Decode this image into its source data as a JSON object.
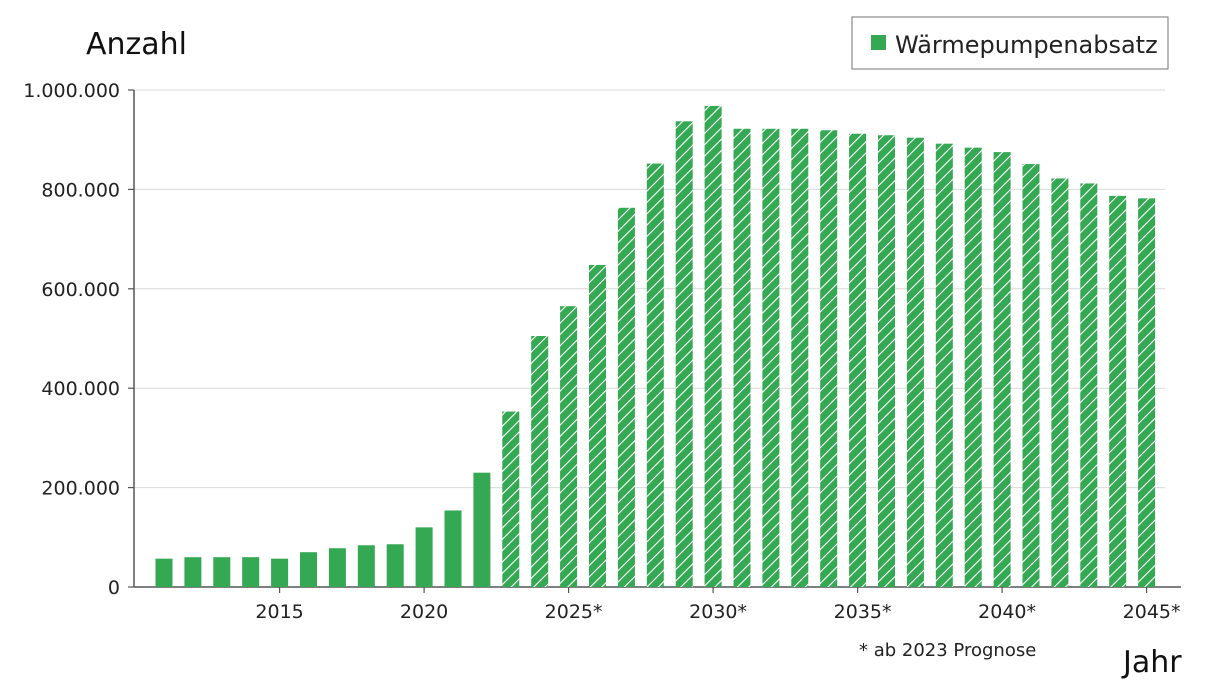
{
  "chart_data": {
    "type": "bar",
    "ylabel": "Anzahl",
    "xlabel": "Jahr",
    "legend": {
      "label": "Wärmepumpenabsatz",
      "placement": "top-right"
    },
    "note": "* ab 2023 Prognose",
    "colors": {
      "bar": "#34a853",
      "hatch": "#ffffff",
      "grid": "#d9d9d9",
      "axis": "#555555"
    },
    "ylim": [
      0,
      1000000
    ],
    "yticks": [
      {
        "value": 0,
        "label": "0"
      },
      {
        "value": 200000,
        "label": "200.000"
      },
      {
        "value": 400000,
        "label": "400.000"
      },
      {
        "value": 600000,
        "label": "600.000"
      },
      {
        "value": 800000,
        "label": "800.000"
      },
      {
        "value": 1000000,
        "label": "1.000.000"
      }
    ],
    "xticks": [
      {
        "year": 2015,
        "label": "2015"
      },
      {
        "year": 2020,
        "label": "2020"
      },
      {
        "year": 2025,
        "label": "2025*"
      },
      {
        "year": 2030,
        "label": "2030*"
      },
      {
        "year": 2035,
        "label": "2035*"
      },
      {
        "year": 2040,
        "label": "2040*"
      },
      {
        "year": 2045,
        "label": "2045*"
      }
    ],
    "grid": true,
    "forecast_from": 2023,
    "categories": [
      2011,
      2012,
      2013,
      2014,
      2015,
      2016,
      2017,
      2018,
      2019,
      2020,
      2021,
      2022,
      2023,
      2024,
      2025,
      2026,
      2027,
      2028,
      2029,
      2030,
      2031,
      2032,
      2033,
      2034,
      2035,
      2036,
      2037,
      2038,
      2039,
      2040,
      2041,
      2042,
      2043,
      2044,
      2045
    ],
    "values": [
      57000,
      60000,
      60000,
      60000,
      57000,
      70000,
      78000,
      84000,
      86000,
      120000,
      154000,
      230000,
      353000,
      505000,
      565000,
      648000,
      763000,
      852000,
      937000,
      968000,
      922000,
      922000,
      922000,
      919000,
      912000,
      909000,
      904000,
      892000,
      884000,
      875000,
      851000,
      822000,
      812000,
      787000,
      782000
    ]
  }
}
